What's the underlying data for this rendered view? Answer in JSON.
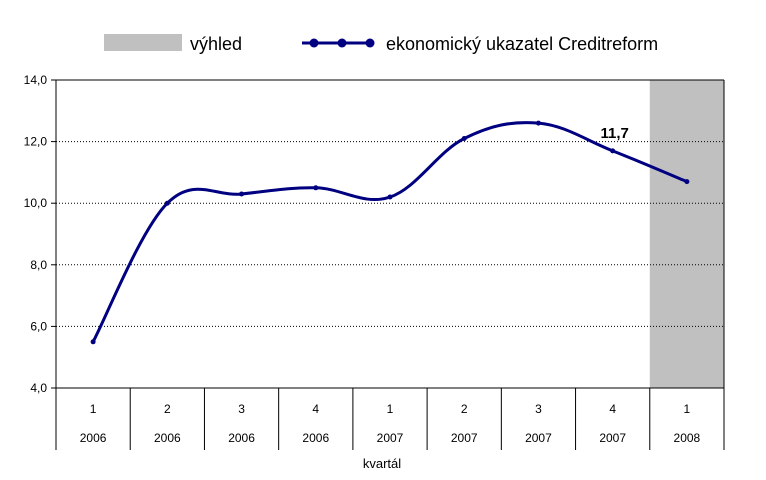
{
  "chart_data": {
    "type": "line",
    "title": "",
    "xlabel": "kvartál",
    "ylabel": "",
    "ylim": [
      4.0,
      14.0
    ],
    "yticks": [
      "4,0",
      "6,0",
      "8,0",
      "10,0",
      "12,0",
      "14,0"
    ],
    "categories": [
      {
        "quarter": "1",
        "year": "2006"
      },
      {
        "quarter": "2",
        "year": "2006"
      },
      {
        "quarter": "3",
        "year": "2006"
      },
      {
        "quarter": "4",
        "year": "2006"
      },
      {
        "quarter": "1",
        "year": "2007"
      },
      {
        "quarter": "2",
        "year": "2007"
      },
      {
        "quarter": "3",
        "year": "2007"
      },
      {
        "quarter": "4",
        "year": "2007"
      },
      {
        "quarter": "1",
        "year": "2008"
      }
    ],
    "series": [
      {
        "name": "ekonomický ukazatel Creditreform",
        "color": "#000080",
        "values": [
          5.5,
          10.0,
          10.3,
          10.5,
          10.2,
          12.1,
          12.6,
          11.7,
          10.7
        ],
        "x": [
          1,
          2,
          3,
          4,
          5,
          6,
          7,
          8,
          9
        ]
      }
    ],
    "forecast": {
      "label": "výhled",
      "color": "#c0c0c0",
      "categories": [
        "1 2008"
      ]
    },
    "annotations": [
      {
        "text": "11,7",
        "category_index": 7
      }
    ],
    "grid": "horizontal dotted",
    "legend": "top"
  }
}
